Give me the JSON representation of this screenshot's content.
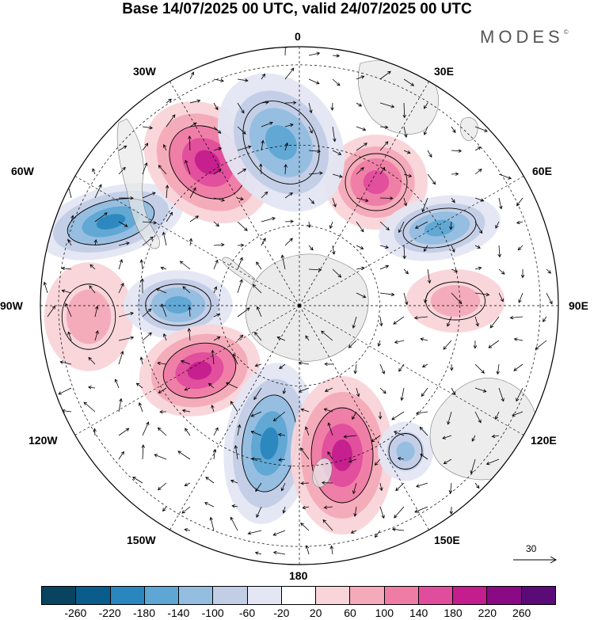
{
  "title": "Base 14/07/2025 00 UTC, valid 24/07/2025 00 UTC",
  "logo": "MODES",
  "logo_mark": "©",
  "longitude_labels": [
    "0",
    "30E",
    "60E",
    "90E",
    "120E",
    "150E",
    "180",
    "150W",
    "120W",
    "90W",
    "60W",
    "30W"
  ],
  "reference_vector": {
    "value": "30"
  },
  "colorbar": {
    "colors": [
      "#08445f",
      "#0a5c8c",
      "#2a86bf",
      "#5ea6d3",
      "#94bde0",
      "#c2cde6",
      "#e4e6f3",
      "#ffffff",
      "#f9d4d8",
      "#f4aab8",
      "#ee7ca4",
      "#e04d9c",
      "#c41d8d",
      "#8a0a86",
      "#5a0b78"
    ],
    "tick_labels": [
      "-260",
      "-220",
      "-180",
      "-140",
      "-100",
      "-60",
      "-20",
      "20",
      "60",
      "100",
      "140",
      "180",
      "220",
      "260"
    ]
  },
  "anomaly_centers": [
    {
      "sign": "negative",
      "level": "-180"
    },
    {
      "sign": "positive",
      "level": "180"
    },
    {
      "sign": "positive",
      "level": "140"
    },
    {
      "sign": "negative",
      "level": "-140"
    },
    {
      "sign": "negative",
      "level": "-140"
    },
    {
      "sign": "positive",
      "level": "60"
    },
    {
      "sign": "negative",
      "level": "-140"
    },
    {
      "sign": "positive",
      "level": "180"
    },
    {
      "sign": "negative",
      "level": "-180"
    },
    {
      "sign": "positive",
      "level": "180"
    },
    {
      "sign": "negative",
      "level": "-100"
    },
    {
      "sign": "positive",
      "level": "60"
    }
  ]
}
